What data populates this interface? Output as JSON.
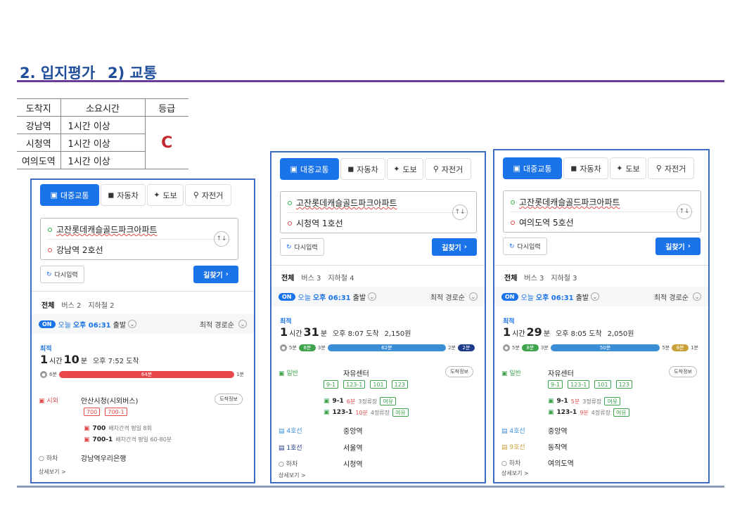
{
  "title": "2. 입지평가_ 2) 교통",
  "grade_table": {
    "headers": [
      "도착지",
      "소요시간",
      "등급"
    ],
    "rows": [
      {
        "dest": "강남역",
        "time": "1시간 이상"
      },
      {
        "dest": "시청역",
        "time": "1시간 이상"
      },
      {
        "dest": "여의도역",
        "time": "1시간 이상"
      }
    ],
    "grade": "C"
  },
  "colors": {
    "accent": "#1a73e8",
    "title": "#1f4e9a",
    "grade": "#c0282e",
    "panel_border": "#3c6cc4"
  },
  "tabs": [
    "대중교통",
    "자동차",
    "도보",
    "자전거"
  ],
  "tab_icons": [
    "bus-icon",
    "car-icon",
    "walk-icon",
    "bicycle-icon"
  ],
  "reset_label": "다시입력",
  "find_label": "길찾기",
  "more_label": "상세보기 >",
  "panels": [
    {
      "origin": "고잔롯데캐슬골드파크아파트",
      "dest": "강남역 2호선",
      "subtabs": [
        "전체",
        "버스 2",
        "지하철 2"
      ],
      "depart": {
        "on": "ON",
        "today": "오늘",
        "time": "오후 06:31",
        "go": "출발",
        "sort": "최적 경로순"
      },
      "best": "최적",
      "dur": {
        "h": "1",
        "hu": "시간",
        "m": "10",
        "mu": "분",
        "meta": "오후 7:52 도착",
        "fare": ""
      },
      "bar": {
        "walk1": "6분",
        "seg1": "64분",
        "walk2": "1분"
      },
      "legs": [
        {
          "mode": "시외",
          "stop": "안산시청(시외버스)"
        },
        {
          "mode": "하차",
          "stop": "강남역우리은행"
        }
      ],
      "chips": [
        "700",
        "700-1"
      ],
      "buses": [
        {
          "no": "700",
          "info": "배차간격 평일 8회"
        },
        {
          "no": "700-1",
          "info": "배차간격 평일 60-80분"
        }
      ],
      "info_btn": "도착정보"
    },
    {
      "origin": "고잔롯데캐슬골드파크아파트",
      "dest": "시청역 1호선",
      "subtabs": [
        "전체",
        "버스 3",
        "지하철 4"
      ],
      "depart": {
        "on": "ON",
        "today": "오늘",
        "time": "오후 06:31",
        "go": "출발",
        "sort": "최적 경로순"
      },
      "best": "최적",
      "dur": {
        "h": "1",
        "hu": "시간",
        "m": "31",
        "mu": "분",
        "meta": "오후 8:07 도착",
        "fare": "2,150원"
      },
      "bar": {
        "walk1": "5분",
        "seg1": "8분",
        "s1": "3분",
        "seg2": "62분",
        "s2": "2분",
        "seg3": "2분"
      },
      "legs": [
        {
          "mode": "일반",
          "stop": "자유센터"
        },
        {
          "mode": "4호선",
          "stop": "중앙역"
        },
        {
          "mode": "1호선",
          "stop": "서울역"
        },
        {
          "mode": "하차",
          "stop": "시청역"
        }
      ],
      "chips": [
        "9-1",
        "123-1",
        "101",
        "123"
      ],
      "buses": [
        {
          "no": "9-1",
          "wait": "6분",
          "stops": "3정류장",
          "tag": "여유"
        },
        {
          "no": "123-1",
          "wait": "10분",
          "stops": "4정류장",
          "tag": "여유"
        }
      ],
      "info_btn": "도착정보"
    },
    {
      "origin": "고잔롯데캐슬골드파크아파트",
      "dest": "여의도역 5호선",
      "subtabs": [
        "전체",
        "버스 3",
        "지하철 3"
      ],
      "depart": {
        "on": "ON",
        "today": "오늘",
        "time": "오후 06:31",
        "go": "출발",
        "sort": "최적 경로순"
      },
      "best": "최적",
      "dur": {
        "h": "1",
        "hu": "시간",
        "m": "29",
        "mu": "분",
        "meta": "오후 8:05 도착",
        "fare": "2,050원"
      },
      "bar": {
        "walk1": "5분",
        "seg1": "8분",
        "s1": "3분",
        "seg2": "50분",
        "s2": "5분",
        "seg3": "8분",
        "walk2": "1분"
      },
      "legs": [
        {
          "mode": "일반",
          "stop": "자유센터"
        },
        {
          "mode": "4호선",
          "stop": "중앙역"
        },
        {
          "mode": "9호선",
          "stop": "동작역"
        },
        {
          "mode": "하차",
          "stop": "여의도역"
        }
      ],
      "chips": [
        "9-1",
        "123-1",
        "101",
        "123"
      ],
      "buses": [
        {
          "no": "9-1",
          "wait": "5분",
          "stops": "3정류장",
          "tag": "여유"
        },
        {
          "no": "123-1",
          "wait": "9분",
          "stops": "4정류장",
          "tag": "여유"
        }
      ],
      "info_btn": "도착정보"
    }
  ]
}
